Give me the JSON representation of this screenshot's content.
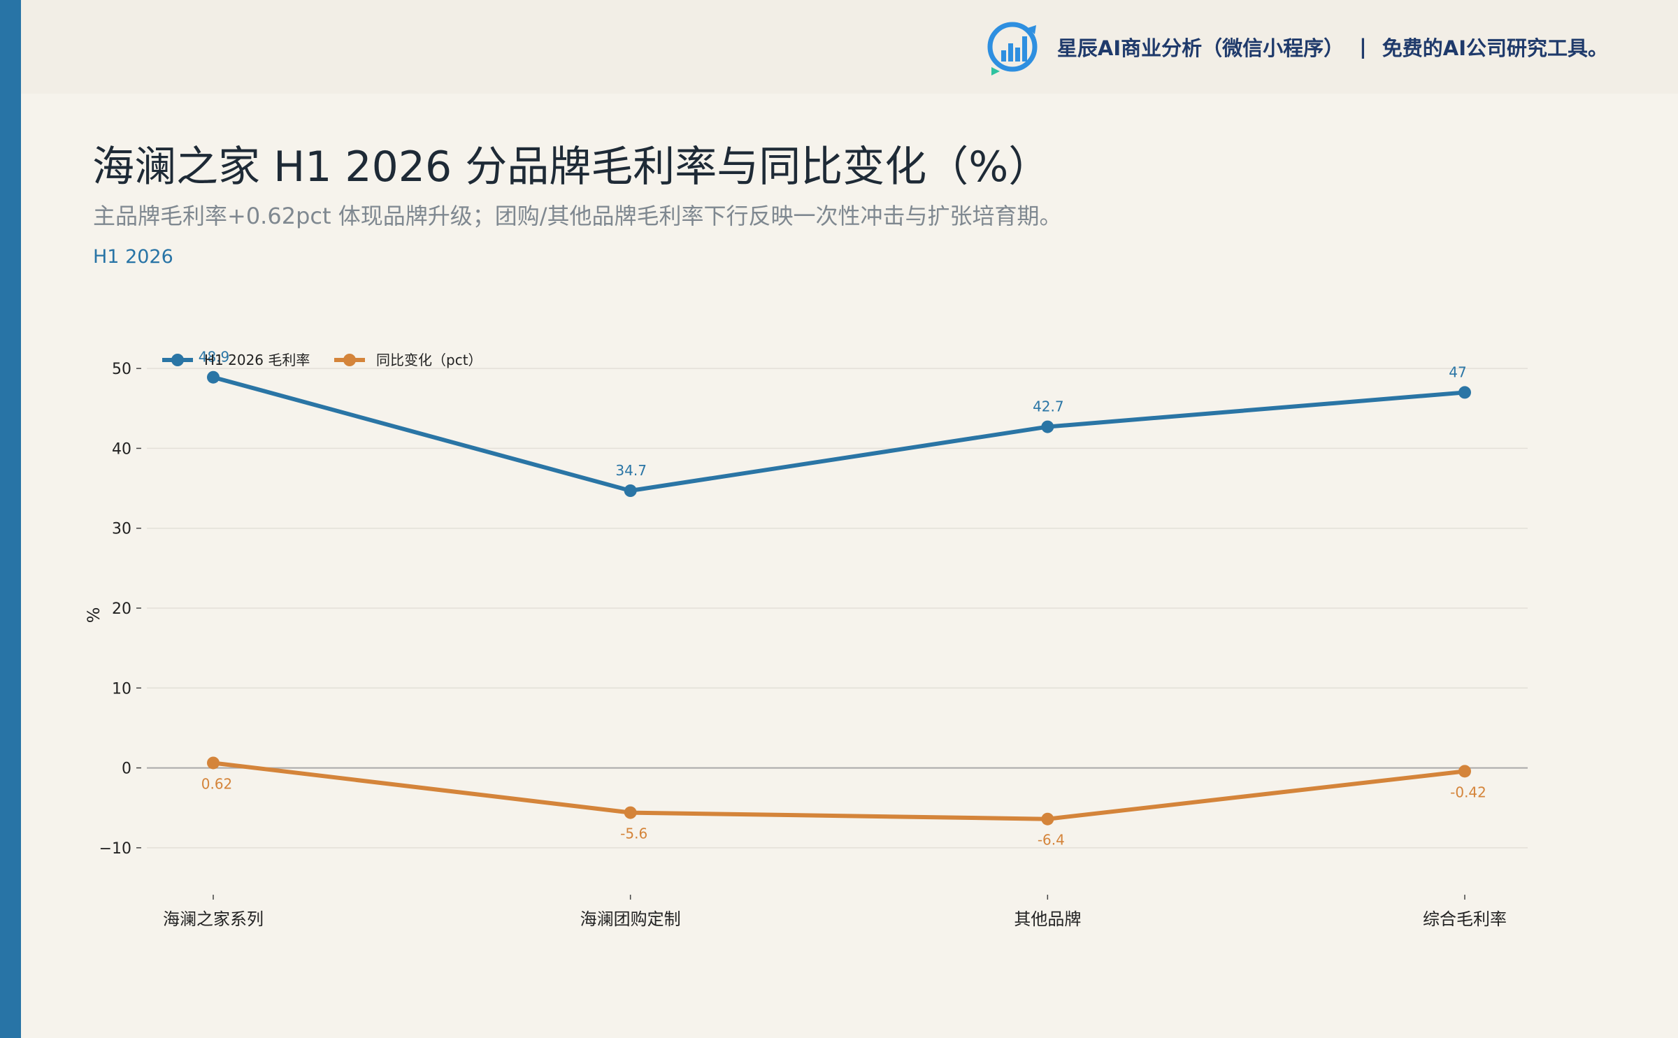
{
  "header": {
    "brand_name": "星辰AI商业分析（微信小程序）",
    "separator": "|",
    "tagline": "免费的AI公司研究工具。"
  },
  "title": "海澜之家 H1 2026 分品牌毛利率与同比变化（%）",
  "subtitle": "主品牌毛利率+0.62pct 体现品牌升级；团购/其他品牌毛利率下行反映一次性冲击与扩张培育期。",
  "period_label": "H1 2026",
  "colors": {
    "accent": "#2874a6",
    "series_blue": "#2a75a5",
    "series_orange": "#d4843a"
  },
  "chart_data": {
    "type": "line",
    "categories": [
      "海澜之家系列",
      "海澜团购定制",
      "其他品牌",
      "综合毛利率"
    ],
    "series": [
      {
        "name": "H1 2026 毛利率",
        "values": [
          48.9,
          34.7,
          42.7,
          47
        ],
        "labels": [
          "48.9",
          "34.7",
          "42.7",
          "47"
        ],
        "color": "#2a75a5"
      },
      {
        "name": "同比变化（pct）",
        "values": [
          0.62,
          -5.6,
          -6.4,
          -0.42
        ],
        "labels": [
          "0.62",
          "-5.6",
          "-6.4",
          "-0.42"
        ],
        "color": "#d4843a"
      }
    ],
    "ylabel": "%",
    "ylim": [
      -15,
      55
    ],
    "yticks": [
      -10,
      0,
      10,
      20,
      30,
      40,
      50
    ],
    "ytick_labels": [
      "−10",
      "0",
      "10",
      "20",
      "30",
      "40",
      "50"
    ],
    "grid": true,
    "legend": "top-left"
  }
}
